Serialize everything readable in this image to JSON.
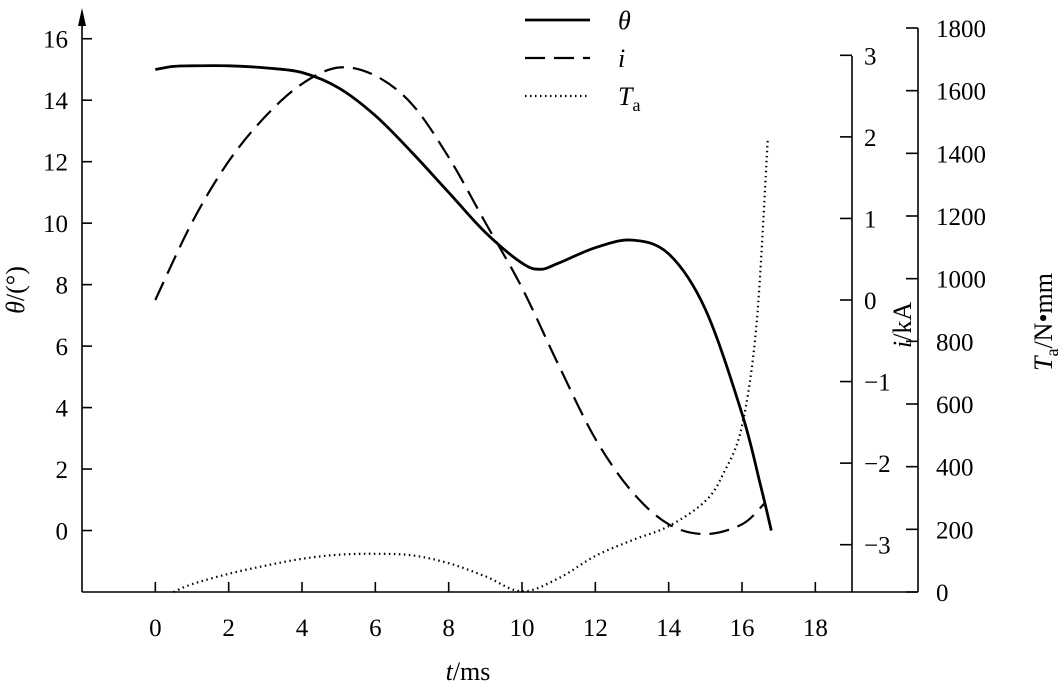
{
  "chart_data": {
    "type": "line",
    "x": {
      "label_var": "t",
      "label_unit": "/ms",
      "ticks": [
        0,
        2,
        4,
        6,
        8,
        10,
        12,
        14,
        16,
        18
      ],
      "range": [
        -2,
        19
      ]
    },
    "y_left": {
      "label_var": "θ",
      "label_unit": "/(°)",
      "ticks": [
        0,
        2,
        4,
        6,
        8,
        10,
        12,
        14,
        16
      ],
      "range": [
        -2,
        17
      ]
    },
    "y_right1": {
      "label_var": "i",
      "label_unit": "/kA",
      "ticks": [
        -3,
        -2,
        -1,
        0,
        1,
        2,
        3
      ],
      "tick_labels": [
        "−3",
        "−2",
        "−1",
        "0",
        "1",
        "2",
        "3"
      ],
      "range": [
        -3.58,
        3.58
      ]
    },
    "y_right2": {
      "label_var": "T",
      "label_sub": "a",
      "label_unit": "/N•mm",
      "ticks": [
        0,
        200,
        400,
        600,
        800,
        1000,
        1200,
        1400,
        1600,
        1800
      ],
      "range": [
        0,
        1800
      ]
    },
    "legend": {
      "placement": "top-center",
      "entries": [
        {
          "var": "θ",
          "sub": "",
          "style": "solid"
        },
        {
          "var": "i",
          "sub": "",
          "style": "dashed"
        },
        {
          "var": "T",
          "sub": "a",
          "style": "dotted"
        }
      ]
    },
    "series": [
      {
        "axis": "left",
        "style": "solid",
        "points": [
          [
            0,
            15.0
          ],
          [
            0.5,
            15.1
          ],
          [
            1,
            15.12
          ],
          [
            2,
            15.12
          ],
          [
            3,
            15.05
          ],
          [
            4,
            14.9
          ],
          [
            5,
            14.4
          ],
          [
            6,
            13.5
          ],
          [
            7,
            12.3
          ],
          [
            8,
            11.0
          ],
          [
            9,
            9.7
          ],
          [
            10,
            8.7
          ],
          [
            10.5,
            8.5
          ],
          [
            11,
            8.7
          ],
          [
            12,
            9.2
          ],
          [
            13,
            9.45
          ],
          [
            14,
            9.0
          ],
          [
            15,
            7.2
          ],
          [
            16,
            3.8
          ],
          [
            16.5,
            1.5
          ],
          [
            16.8,
            0
          ]
        ]
      },
      {
        "axis": "right1",
        "style": "dashed",
        "points": [
          [
            0,
            0
          ],
          [
            1,
            0.95
          ],
          [
            2,
            1.7
          ],
          [
            3,
            2.25
          ],
          [
            4,
            2.65
          ],
          [
            5,
            2.85
          ],
          [
            6,
            2.75
          ],
          [
            7,
            2.4
          ],
          [
            8,
            1.75
          ],
          [
            9,
            0.95
          ],
          [
            10,
            0.15
          ],
          [
            11,
            -0.8
          ],
          [
            12,
            -1.7
          ],
          [
            13,
            -2.35
          ],
          [
            14,
            -2.75
          ],
          [
            15,
            -2.87
          ],
          [
            16,
            -2.75
          ],
          [
            16.6,
            -2.5
          ]
        ]
      },
      {
        "axis": "right2",
        "style": "dotted",
        "points": [
          [
            0.5,
            0
          ],
          [
            1,
            25
          ],
          [
            2,
            58
          ],
          [
            3,
            84
          ],
          [
            4,
            106
          ],
          [
            5,
            119
          ],
          [
            6,
            122
          ],
          [
            7,
            117
          ],
          [
            8,
            92
          ],
          [
            9,
            50
          ],
          [
            10,
            2
          ],
          [
            11,
            44
          ],
          [
            12,
            115
          ],
          [
            13,
            165
          ],
          [
            14,
            210
          ],
          [
            15,
            290
          ],
          [
            15.5,
            380
          ],
          [
            16,
            530
          ],
          [
            16.4,
            860
          ],
          [
            16.7,
            1440
          ]
        ]
      }
    ]
  }
}
